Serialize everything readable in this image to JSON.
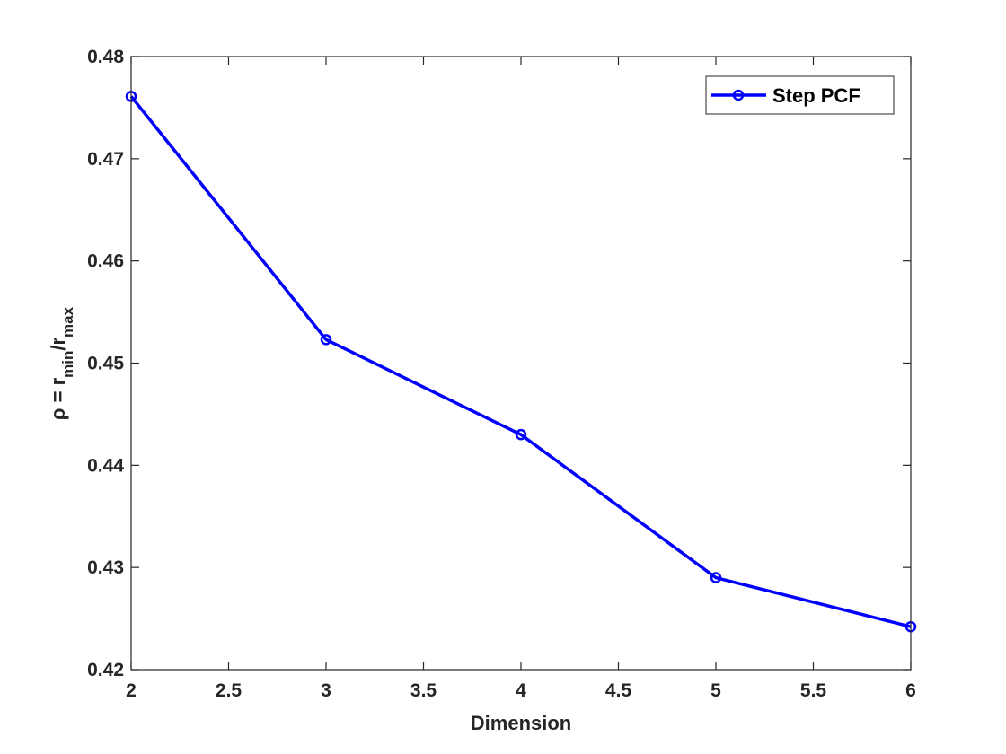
{
  "chart_data": {
    "type": "line",
    "x": [
      2,
      3,
      4,
      5,
      6
    ],
    "series": [
      {
        "name": "Step PCF",
        "values": [
          0.4761,
          0.4523,
          0.443,
          0.429,
          0.4242
        ],
        "color": "#0000ff",
        "marker": "circle"
      }
    ],
    "xlabel": "Dimension",
    "ylabel": {
      "prefix": "ρ = r",
      "sub1": "min",
      "mid": "/r",
      "sub2": "max"
    },
    "xlim": [
      2,
      6
    ],
    "ylim": [
      0.42,
      0.48
    ],
    "xticks": [
      2,
      2.5,
      3,
      3.5,
      4,
      4.5,
      5,
      5.5,
      6
    ],
    "xtick_labels": [
      "2",
      "2.5",
      "3",
      "3.5",
      "4",
      "4.5",
      "5",
      "5.5",
      "6"
    ],
    "yticks": [
      0.42,
      0.43,
      0.44,
      0.45,
      0.46,
      0.47,
      0.48
    ],
    "ytick_labels": [
      "0.42",
      "0.43",
      "0.44",
      "0.45",
      "0.46",
      "0.47",
      "0.48"
    ],
    "grid": false,
    "legend_position": "top-right"
  }
}
